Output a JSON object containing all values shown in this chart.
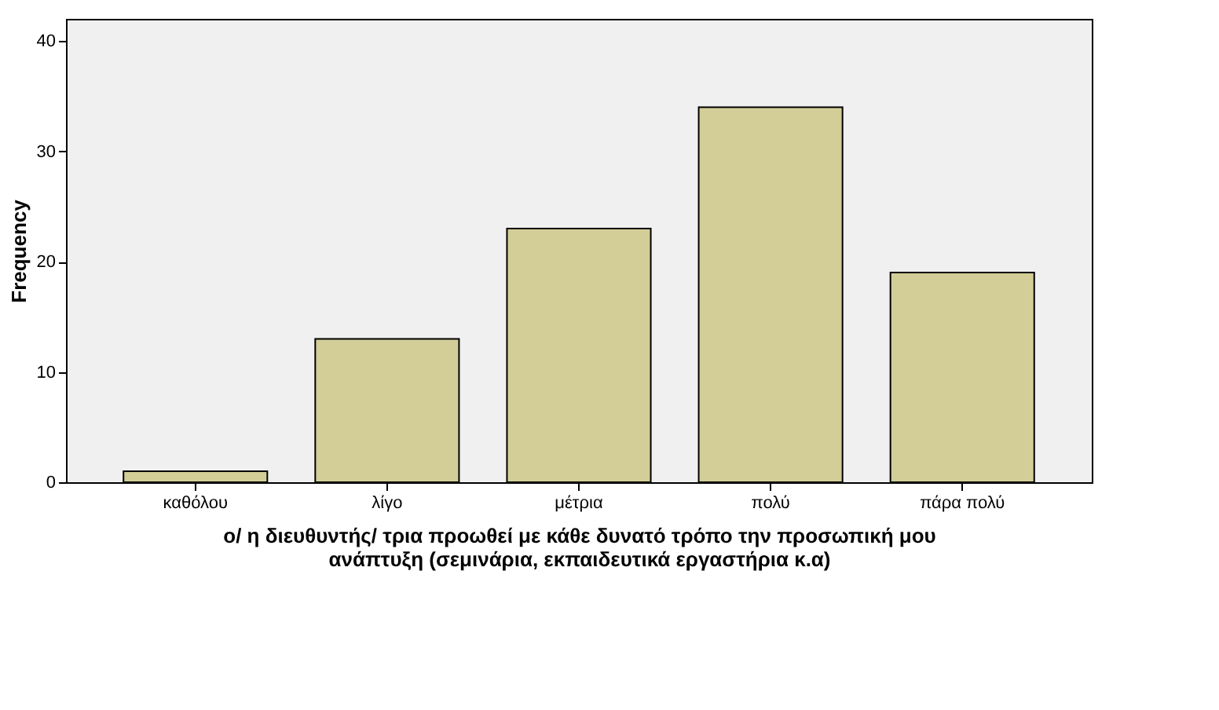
{
  "chart_data": {
    "type": "bar",
    "xlabel": "ο/ η διευθυντής/ τρια προωθεί με κάθε δυνατό τρόπο την προσωπική μου\nανάπτυξη (σεμινάρια, εκπαιδευτικά εργαστήρια κ.α)",
    "ylabel": "Frequency",
    "categories": [
      "καθόλου",
      "λίγο",
      "μέτρια",
      "πολύ",
      "πάρα πολύ"
    ],
    "values": [
      1,
      13,
      23,
      34,
      19
    ],
    "color": "#d3ce97",
    "ylim": [
      0,
      42
    ],
    "yticks": [
      0,
      10,
      20,
      30,
      40
    ],
    "grid": false
  }
}
